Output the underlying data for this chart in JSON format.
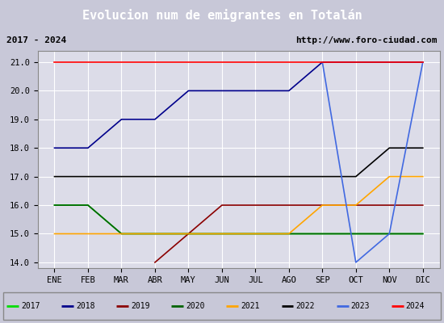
{
  "title": "Evolucion num de emigrantes en Totalán",
  "subtitle_left": "2017 - 2024",
  "subtitle_right": "http://www.foro-ciudad.com",
  "x_labels": [
    "ENE",
    "FEB",
    "MAR",
    "ABR",
    "MAY",
    "JUN",
    "JUL",
    "AGO",
    "SEP",
    "OCT",
    "NOV",
    "DIC"
  ],
  "ylim": [
    13.8,
    21.4
  ],
  "yticks": [
    14.0,
    15.0,
    16.0,
    17.0,
    18.0,
    19.0,
    20.0,
    21.0
  ],
  "series": {
    "2017": {
      "color": "#00dd00",
      "data": [
        16,
        16,
        15,
        15,
        15,
        15,
        15,
        15,
        15,
        15,
        15,
        15
      ]
    },
    "2018": {
      "color": "#00008b",
      "data": [
        18,
        18,
        19,
        19,
        20,
        20,
        20,
        20,
        21,
        21,
        21,
        21
      ]
    },
    "2019": {
      "color": "#8b0000",
      "data": [
        null,
        null,
        null,
        14,
        15,
        16,
        16,
        16,
        16,
        16,
        16,
        16
      ]
    },
    "2020": {
      "color": "#006400",
      "data": [
        16,
        16,
        15,
        15,
        15,
        15,
        15,
        15,
        15,
        15,
        15,
        15
      ]
    },
    "2021": {
      "color": "#ffa500",
      "data": [
        15,
        15,
        15,
        15,
        15,
        15,
        15,
        15,
        16,
        16,
        17,
        17
      ]
    },
    "2022": {
      "color": "#000000",
      "data": [
        17,
        17,
        17,
        17,
        17,
        17,
        17,
        17,
        17,
        17,
        18,
        18
      ]
    },
    "2023": {
      "color": "#4169e1",
      "data": [
        null,
        null,
        null,
        null,
        null,
        null,
        null,
        null,
        21,
        14,
        15,
        21
      ]
    },
    "2024": {
      "color": "#ff0000",
      "data": [
        21,
        21,
        21,
        21,
        21,
        21,
        21,
        21,
        21,
        21,
        21,
        21
      ]
    }
  },
  "background_color": "#c8c8d8",
  "plot_bg_color": "#dcdce8",
  "title_bg_color": "#5588dd",
  "title_color": "#ffffff",
  "grid_color": "#ffffff",
  "legend_order": [
    "2017",
    "2018",
    "2019",
    "2020",
    "2021",
    "2022",
    "2023",
    "2024"
  ]
}
